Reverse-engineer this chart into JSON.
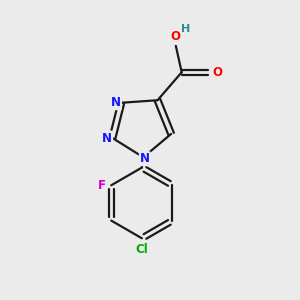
{
  "background_color": "#ebebeb",
  "bond_color": "#1a1a1a",
  "atom_colors": {
    "N": "#1414ff",
    "O": "#ff0000",
    "H": "#2e8b8b",
    "F": "#cc00cc",
    "Cl": "#00aa00",
    "C": "#1a1a1a"
  },
  "figsize": [
    3.0,
    3.0
  ],
  "dpi": 100
}
